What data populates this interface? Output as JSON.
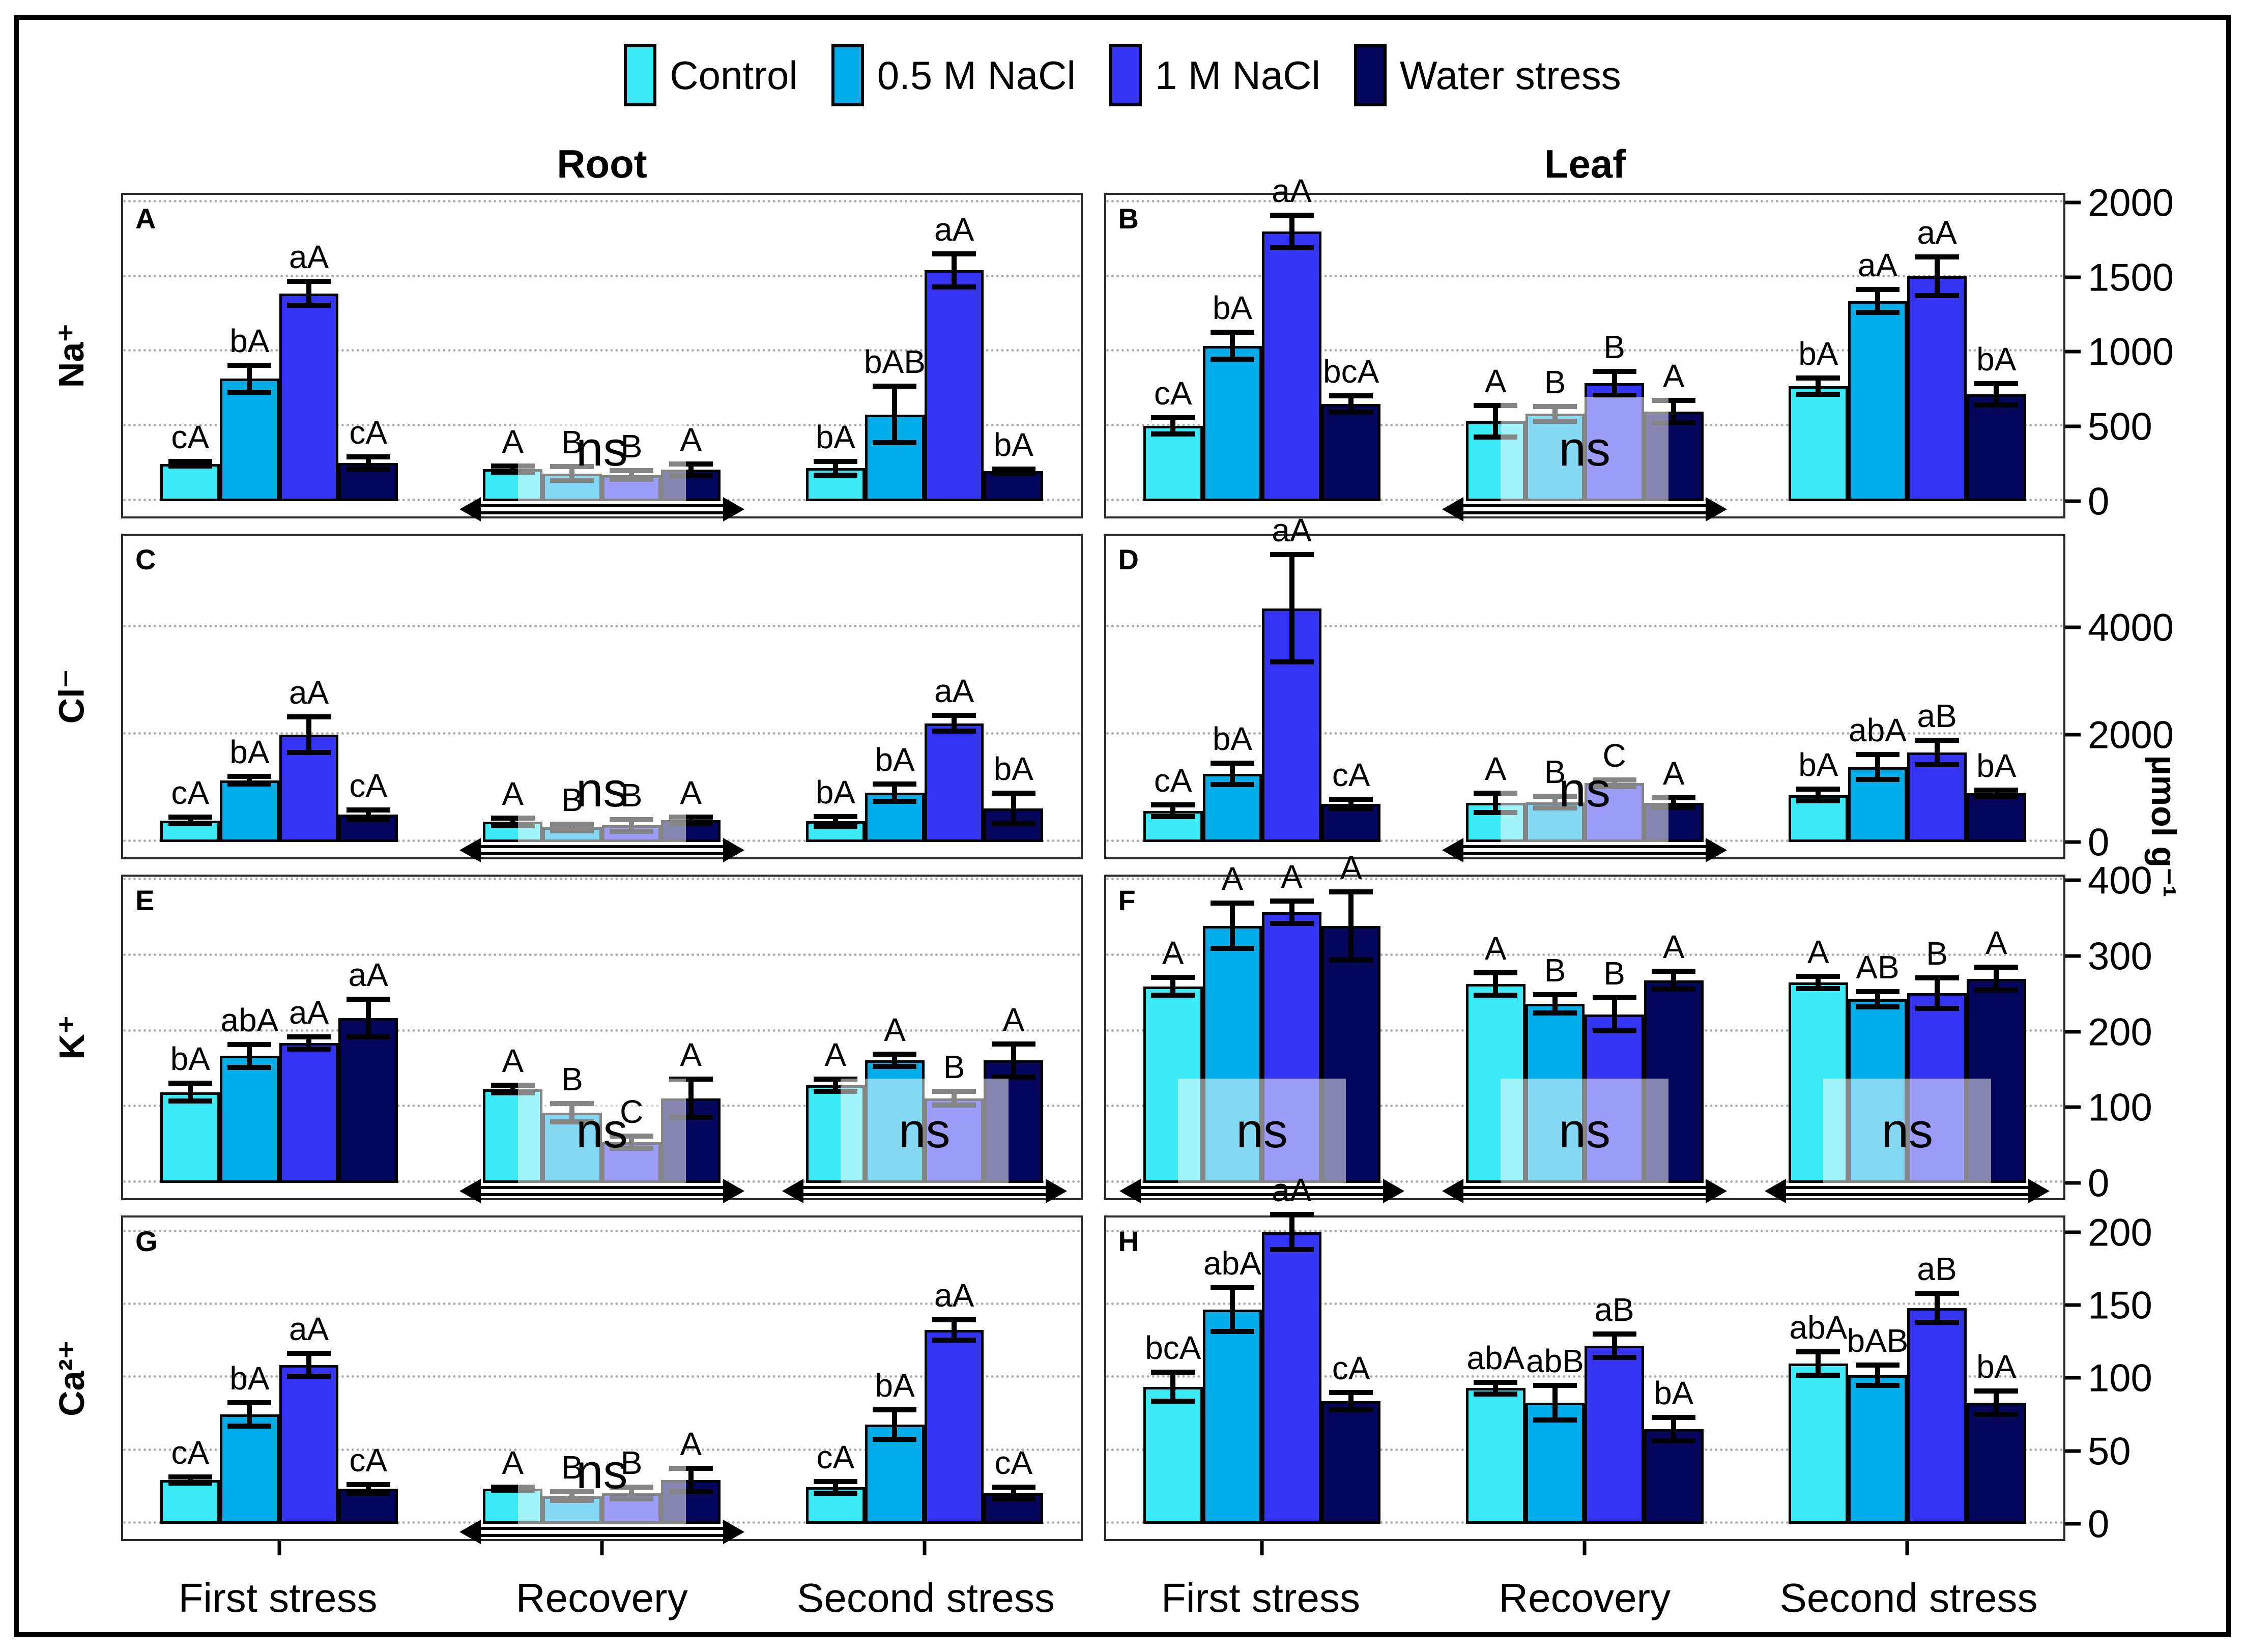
{
  "headers": {
    "left": "Root",
    "right": "Leaf"
  },
  "chart_data": {
    "type": "bar",
    "title": "",
    "ylabel": "µmol g⁻¹",
    "ns_text": "ns",
    "categories": [
      "First stress",
      "Recovery",
      "Second stress"
    ],
    "series_legend": [
      "Control",
      "0.5 M NaCl",
      "1 M NaCl",
      "Water stress"
    ],
    "colors": [
      "#3CEBF5",
      "#00ADE8",
      "#3434F2",
      "#05055C"
    ],
    "gridline_color": "#aeaeae",
    "legend_position": "top-center",
    "grid": "dotted-horizontal",
    "panels": [
      {
        "id": "A",
        "ion": "Na⁺",
        "tissue": "Root",
        "ylim": [
          0,
          2050
        ],
        "ticks": [
          0,
          500,
          1000,
          1500,
          2000
        ],
        "show_right_axis_labels": false,
        "bottom_ticks": false,
        "groups": [
          {
            "category": "First stress",
            "values": [
              250,
              820,
              1390,
              255
            ],
            "errors": [
              15,
              90,
              80,
              40
            ],
            "letters": [
              "cA",
              "bA",
              "aA",
              "cA"
            ],
            "ns": false
          },
          {
            "category": "Recovery",
            "values": [
              215,
              185,
              175,
              210
            ],
            "errors": [
              20,
              45,
              30,
              40
            ],
            "letters": [
              "A",
              "B",
              "B",
              "A"
            ],
            "ns": true
          },
          {
            "category": "Second stress",
            "values": [
              220,
              580,
              1545,
              200
            ],
            "errors": [
              45,
              190,
              110,
              15
            ],
            "letters": [
              "bA",
              "bAB",
              "aA",
              "bA"
            ],
            "ns": false
          }
        ]
      },
      {
        "id": "B",
        "ion": "Na⁺",
        "tissue": "Leaf",
        "ylim": [
          0,
          2050
        ],
        "ticks": [
          0,
          500,
          1000,
          1500,
          2000
        ],
        "show_right_axis_labels": true,
        "bottom_ticks": false,
        "groups": [
          {
            "category": "First stress",
            "values": [
              505,
              1040,
              1805,
              650
            ],
            "errors": [
              55,
              90,
              110,
              55
            ],
            "letters": [
              "cA",
              "bA",
              "aA",
              "bcA"
            ],
            "ns": false
          },
          {
            "category": "Recovery",
            "values": [
              535,
              585,
              790,
              600
            ],
            "errors": [
              105,
              50,
              80,
              75
            ],
            "letters": [
              "A",
              "B",
              "B",
              "A"
            ],
            "ns": true
          },
          {
            "category": "Second stress",
            "values": [
              770,
              1340,
              1505,
              715
            ],
            "errors": [
              55,
              75,
              130,
              70
            ],
            "letters": [
              "bA",
              "aA",
              "aA",
              "bA"
            ],
            "ns": false
          }
        ]
      },
      {
        "id": "C",
        "ion": "Cl⁻",
        "tissue": "Root",
        "ylim": [
          0,
          5700
        ],
        "ticks": [
          0,
          2000,
          4000
        ],
        "show_right_axis_labels": false,
        "bottom_ticks": false,
        "groups": [
          {
            "category": "First stress",
            "values": [
              400,
              1150,
              2000,
              510
            ],
            "errors": [
              60,
              70,
              330,
              90
            ],
            "letters": [
              "cA",
              "bA",
              "aA",
              "cA"
            ],
            "ns": false
          },
          {
            "category": "Recovery",
            "values": [
              375,
              270,
              310,
              405
            ],
            "errors": [
              70,
              60,
              110,
              60
            ],
            "letters": [
              "A",
              "B",
              "B",
              "A"
            ],
            "ns": true
          },
          {
            "category": "Second stress",
            "values": [
              385,
              915,
              2210,
              625
            ],
            "errors": [
              90,
              160,
              150,
              280
            ],
            "letters": [
              "bA",
              "bA",
              "aA",
              "bA"
            ],
            "ns": false
          }
        ]
      },
      {
        "id": "D",
        "ion": "Cl⁻",
        "tissue": "Leaf",
        "ylim": [
          0,
          5700
        ],
        "ticks": [
          0,
          2000,
          4000
        ],
        "show_right_axis_labels": true,
        "bottom_ticks": false,
        "groups": [
          {
            "category": "First stress",
            "values": [
              580,
              1270,
              4350,
              710
            ],
            "errors": [
              110,
              200,
              1000,
              90
            ],
            "letters": [
              "cA",
              "bA",
              "aA",
              "cA"
            ],
            "ns": false
          },
          {
            "category": "Recovery",
            "values": [
              730,
              740,
              1095,
              730
            ],
            "errors": [
              180,
              110,
              60,
              90
            ],
            "letters": [
              "A",
              "B",
              "C",
              "A"
            ],
            "ns": true
          },
          {
            "category": "Second stress",
            "values": [
              875,
              1395,
              1665,
              905
            ],
            "errors": [
              110,
              230,
              230,
              60
            ],
            "letters": [
              "bA",
              "abA",
              "aB",
              "bA"
            ],
            "ns": false
          }
        ]
      },
      {
        "id": "E",
        "ion": "K⁺",
        "tissue": "Root",
        "ylim": [
          0,
          405
        ],
        "ticks": [
          0,
          100,
          200,
          300,
          400
        ],
        "show_right_axis_labels": false,
        "bottom_ticks": false,
        "groups": [
          {
            "category": "First stress",
            "values": [
              120,
              168,
              185,
              218
            ],
            "errors": [
              12,
              15,
              8,
              25
            ],
            "letters": [
              "bA",
              "abA",
              "aA",
              "aA"
            ],
            "ns": false
          },
          {
            "category": "Recovery",
            "values": [
              124,
              93,
              54,
              112
            ],
            "errors": [
              5,
              12,
              8,
              25
            ],
            "letters": [
              "A",
              "B",
              "C",
              "A"
            ],
            "ns": true
          },
          {
            "category": "Second stress",
            "values": [
              129,
              162,
              112,
              162
            ],
            "errors": [
              8,
              8,
              9,
              22
            ],
            "letters": [
              "A",
              "A",
              "B",
              "A"
            ],
            "ns": true
          }
        ]
      },
      {
        "id": "F",
        "ion": "K⁺",
        "tissue": "Leaf",
        "ylim": [
          0,
          405
        ],
        "ticks": [
          0,
          100,
          200,
          300,
          400
        ],
        "show_right_axis_labels": true,
        "bottom_ticks": false,
        "groups": [
          {
            "category": "First stress",
            "values": [
              260,
              340,
              358,
              340
            ],
            "errors": [
              12,
              30,
              15,
              45
            ],
            "letters": [
              "A",
              "A",
              "A",
              "A"
            ],
            "ns": true
          },
          {
            "category": "Recovery",
            "values": [
              263,
              237,
              223,
              268
            ],
            "errors": [
              15,
              12,
              22,
              12
            ],
            "letters": [
              "A",
              "B",
              "B",
              "A"
            ],
            "ns": true
          },
          {
            "category": "Second stress",
            "values": [
              265,
              243,
              251,
              270
            ],
            "errors": [
              8,
              10,
              20,
              15
            ],
            "letters": [
              "A",
              "AB",
              "B",
              "A"
            ],
            "ns": true
          }
        ]
      },
      {
        "id": "G",
        "ion": "Ca²⁺",
        "tissue": "Root",
        "ylim": [
          0,
          210
        ],
        "ticks": [
          0,
          50,
          100,
          150,
          200
        ],
        "show_right_axis_labels": false,
        "bottom_ticks": true,
        "groups": [
          {
            "category": "First stress",
            "values": [
              30,
              75,
              109,
              24
            ],
            "errors": [
              2,
              8,
              8,
              3
            ],
            "letters": [
              "cA",
              "bA",
              "aA",
              "cA"
            ],
            "ns": false
          },
          {
            "category": "Recovery",
            "values": [
              24,
              19,
              21,
              30
            ],
            "errors": [
              1,
              3,
              4,
              8
            ],
            "letters": [
              "A",
              "B",
              "B",
              "A"
            ],
            "ns": true
          },
          {
            "category": "Second stress",
            "values": [
              25,
              68,
              133,
              21
            ],
            "errors": [
              4,
              10,
              7,
              4
            ],
            "letters": [
              "cA",
              "bA",
              "aA",
              "cA"
            ],
            "ns": false
          }
        ]
      },
      {
        "id": "H",
        "ion": "Ca²⁺",
        "tissue": "Leaf",
        "ylim": [
          0,
          210
        ],
        "ticks": [
          0,
          50,
          100,
          150,
          200
        ],
        "show_right_axis_labels": true,
        "bottom_ticks": true,
        "groups": [
          {
            "category": "First stress",
            "values": [
              94,
              147,
              200,
              84
            ],
            "errors": [
              10,
              15,
              12,
              6
            ],
            "letters": [
              "bcA",
              "abA",
              "aA",
              "cA"
            ],
            "ns": false
          },
          {
            "category": "Recovery",
            "values": [
              93,
              83,
              122,
              65
            ],
            "errors": [
              4,
              12,
              8,
              8
            ],
            "letters": [
              "abA",
              "abB",
              "aB",
              "bA"
            ],
            "ns": false
          },
          {
            "category": "Second stress",
            "values": [
              110,
              102,
              148,
              83
            ],
            "errors": [
              8,
              7,
              10,
              8
            ],
            "letters": [
              "abA",
              "bAB",
              "aB",
              "bA"
            ],
            "ns": false
          }
        ]
      }
    ]
  }
}
